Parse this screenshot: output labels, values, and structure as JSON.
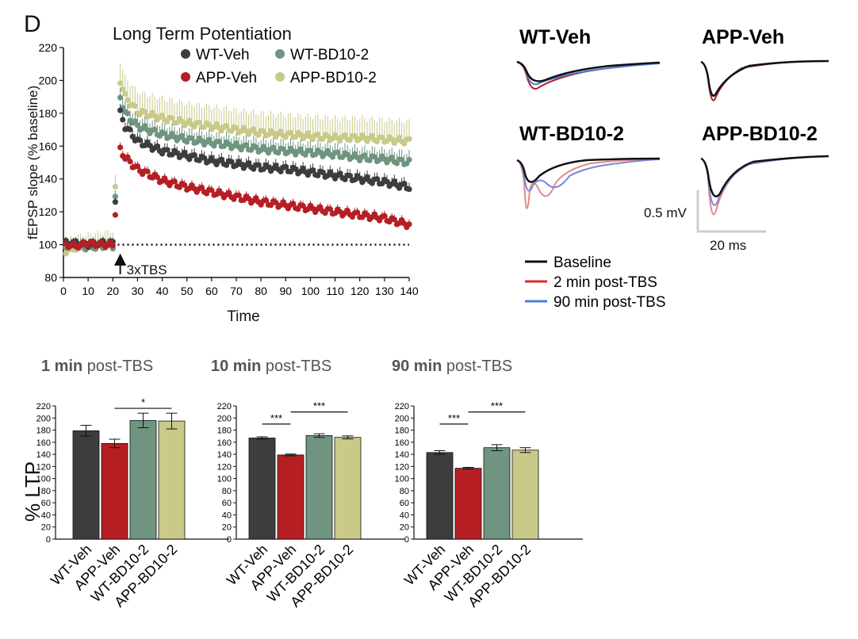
{
  "panel_letter": "D",
  "groups": [
    {
      "name": "WT-Veh",
      "color": "#3d3d3d"
    },
    {
      "name": "APP-Veh",
      "color": "#b51f24"
    },
    {
      "name": "WT-BD10-2",
      "color": "#6f9580"
    },
    {
      "name": "APP-BD10-2",
      "color": "#c9c98a"
    }
  ],
  "traces": {
    "scale_bar_v": "0.5 mV",
    "scale_bar_h": "20 ms",
    "legend": [
      {
        "label": "Baseline",
        "color": "#111111"
      },
      {
        "label": "2 min post-TBS",
        "color": "#e0262b"
      },
      {
        "label": "90 min post-TBS",
        "color": "#4a7fd4"
      }
    ]
  },
  "chart_data": [
    {
      "type": "scatter",
      "title": "Long Term Potentiation",
      "xlabel": "Time",
      "ylabel": "fEPSP slope (% baseline)",
      "xlim": [
        0,
        140
      ],
      "ylim": [
        80,
        220
      ],
      "xticks": [
        0,
        10,
        20,
        30,
        40,
        50,
        60,
        70,
        80,
        90,
        100,
        110,
        120,
        130,
        140
      ],
      "yticks": [
        80,
        100,
        120,
        140,
        160,
        180,
        200,
        220
      ],
      "legend_position": "top",
      "annotation": "3xTBS",
      "annotation_x": 23,
      "baseline_reference": 100,
      "series": [
        {
          "name": "WT-Veh",
          "color": "#3d3d3d",
          "x": [
            1,
            5,
            10,
            15,
            20,
            23,
            25,
            30,
            40,
            50,
            60,
            70,
            80,
            90,
            100,
            110,
            120,
            130,
            140
          ],
          "y": [
            101,
            101,
            100,
            101,
            101,
            180,
            172,
            163,
            157,
            154,
            151,
            149,
            147,
            146,
            144,
            142,
            140,
            138,
            135
          ],
          "err": 4
        },
        {
          "name": "APP-Veh",
          "color": "#b51f24",
          "x": [
            1,
            5,
            10,
            15,
            20,
            23,
            25,
            30,
            40,
            50,
            60,
            70,
            80,
            90,
            100,
            110,
            120,
            130,
            140
          ],
          "y": [
            100,
            99,
            101,
            100,
            100,
            158,
            153,
            146,
            139,
            135,
            132,
            129,
            126,
            124,
            122,
            120,
            118,
            116,
            112
          ],
          "err": 3
        },
        {
          "name": "WT-BD10-2",
          "color": "#6f9580",
          "x": [
            1,
            5,
            10,
            15,
            20,
            23,
            25,
            30,
            40,
            50,
            60,
            70,
            80,
            90,
            100,
            110,
            120,
            130,
            140
          ],
          "y": [
            99,
            100,
            98,
            99,
            99,
            190,
            180,
            172,
            167,
            164,
            162,
            160,
            158,
            157,
            156,
            155,
            153,
            152,
            150
          ],
          "err": 6
        },
        {
          "name": "APP-BD10-2",
          "color": "#c9c98a",
          "x": [
            1,
            5,
            10,
            15,
            20,
            23,
            25,
            30,
            40,
            50,
            60,
            70,
            80,
            90,
            100,
            110,
            120,
            130,
            140
          ],
          "y": [
            96,
            98,
            99,
            100,
            101,
            200,
            190,
            181,
            177,
            174,
            172,
            170,
            168,
            167,
            166,
            165,
            165,
            164,
            163
          ],
          "err": 12
        }
      ]
    },
    {
      "type": "bar",
      "title_bold": "1 min",
      "title_rest": "post-TBS",
      "ylabel": "% LTP",
      "ylim": [
        0,
        220
      ],
      "yticks": [
        0,
        20,
        40,
        60,
        80,
        100,
        120,
        140,
        160,
        180,
        200,
        220
      ],
      "categories": [
        "WT-Veh",
        "APP-Veh",
        "WT-BD10-2",
        "APP-BD10-2"
      ],
      "values": [
        179,
        158,
        196,
        195
      ],
      "errors": [
        9,
        7,
        12,
        13
      ],
      "significance": [
        {
          "from": 1,
          "to": 3,
          "label": "*"
        }
      ]
    },
    {
      "type": "bar",
      "title_bold": "10 min",
      "title_rest": "post-TBS",
      "ylim": [
        0,
        220
      ],
      "yticks": [
        0,
        20,
        40,
        60,
        80,
        100,
        120,
        140,
        160,
        180,
        200,
        220
      ],
      "categories": [
        "WT-Veh",
        "APP-Veh",
        "WT-BD10-2",
        "APP-BD10-2"
      ],
      "values": [
        167,
        139,
        171,
        168
      ],
      "errors": [
        2,
        1.5,
        3,
        2.5
      ],
      "significance": [
        {
          "from": 0,
          "to": 1,
          "label": "***"
        },
        {
          "from": 1,
          "to": 3,
          "label": "***"
        }
      ]
    },
    {
      "type": "bar",
      "title_bold": "90 min",
      "title_rest": "post-TBS",
      "ylim": [
        0,
        220
      ],
      "yticks": [
        0,
        20,
        40,
        60,
        80,
        100,
        120,
        140,
        160,
        180,
        200,
        220
      ],
      "categories": [
        "WT-Veh",
        "APP-Veh",
        "WT-BD10-2",
        "APP-BD10-2"
      ],
      "values": [
        143,
        117,
        151,
        147
      ],
      "errors": [
        3,
        1.5,
        5,
        4
      ],
      "significance": [
        {
          "from": 0,
          "to": 1,
          "label": "***"
        },
        {
          "from": 1,
          "to": 3,
          "label": "***"
        }
      ]
    }
  ]
}
